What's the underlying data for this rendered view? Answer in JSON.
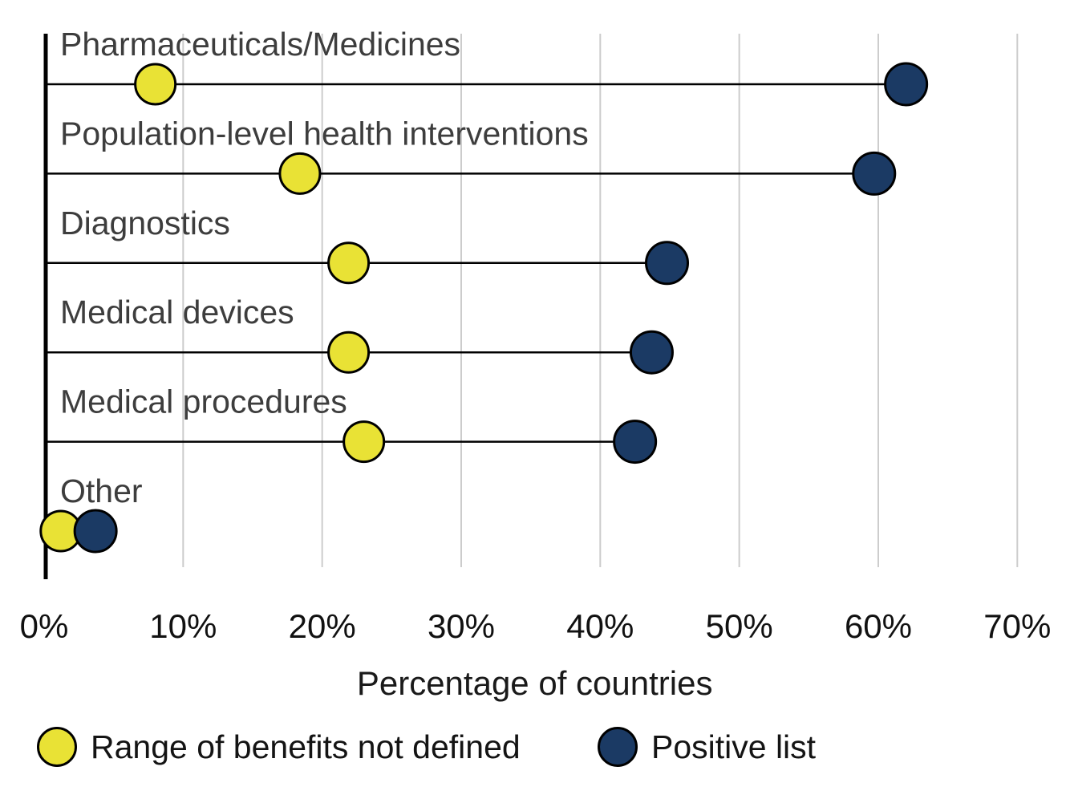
{
  "figure": {
    "background": "#ffffff"
  },
  "chart_data": {
    "type": "scatter",
    "variant": "horizontal-dumbbell-lollipop",
    "categories": [
      "Pharmaceuticals/Medicines",
      "Population-level health interventions",
      "Diagnostics",
      "Medical devices",
      "Medical procedures",
      "Other"
    ],
    "series": [
      {
        "name": "Range of benefits not defined",
        "color": "#e9e235",
        "values": [
          8,
          18.4,
          21.9,
          21.9,
          23,
          1.2
        ]
      },
      {
        "name": "Positive list",
        "color": "#1b3a64",
        "values": [
          62,
          59.7,
          44.8,
          43.7,
          42.5,
          3.7
        ]
      }
    ],
    "xlabel": "Percentage of countries",
    "xlim": [
      0,
      70
    ],
    "xticks": [
      0,
      10,
      20,
      30,
      40,
      50,
      60,
      70
    ],
    "xtick_labels": [
      "0%",
      "10%",
      "20%",
      "30%",
      "40%",
      "50%",
      "60%",
      "70%"
    ],
    "grid": "vertical-gridlines",
    "legend_position": "bottom-left"
  },
  "legend": {
    "items": [
      {
        "label": "Range of benefits not defined",
        "color": "#e9e235"
      },
      {
        "label": "Positive list",
        "color": "#1b3a64"
      }
    ]
  },
  "colors": {
    "category_label": "#3d3d3d",
    "tick_label": "#111111",
    "axis_label": "#1a1a1a",
    "gridline": "#cccccc",
    "spine": "#000000",
    "connector": "#000000",
    "dot_stroke": "#000000"
  }
}
